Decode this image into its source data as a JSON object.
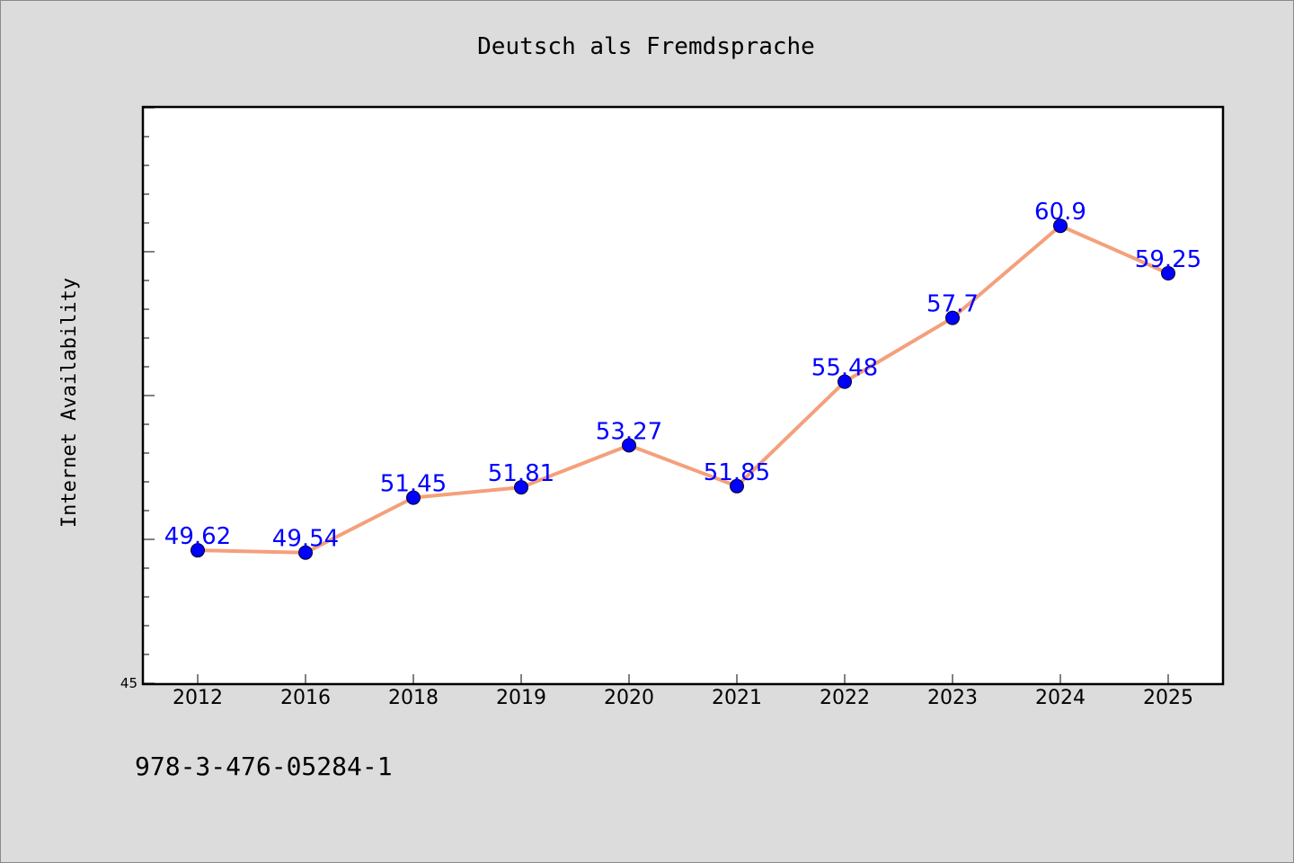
{
  "isbn": "978-3-476-05284-1",
  "chart_data": {
    "type": "line",
    "title": "Deutsch als Fremdsprache",
    "xlabel": "",
    "ylabel": "Internet Availability",
    "categories": [
      "2012",
      "2016",
      "2018",
      "2019",
      "2020",
      "2021",
      "2022",
      "2023",
      "2024",
      "2025"
    ],
    "series": [
      {
        "values": [
          49.62,
          49.54,
          51.45,
          51.81,
          53.27,
          51.85,
          55.48,
          57.7,
          60.9,
          59.25
        ],
        "labels": [
          "49.62",
          "49.54",
          "51.45",
          "51.81",
          "53.27",
          "51.85",
          "55.48",
          "57.7",
          "60.9",
          "59.25"
        ]
      }
    ],
    "ylim": [
      45,
      65
    ],
    "y_tick_labels": [
      "45"
    ],
    "grid": false,
    "legend": "none",
    "line_color": "#f4a07c",
    "marker_color": "#0000ff",
    "label_color": "#0000ff"
  }
}
